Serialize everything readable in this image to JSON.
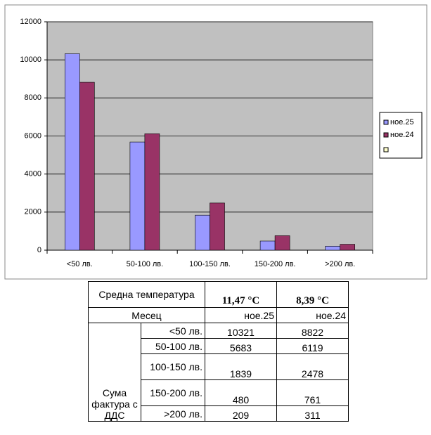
{
  "chart_data": {
    "type": "bar",
    "categories": [
      "<50 лв.",
      "50-100 лв.",
      "100-150 лв.",
      "150-200 лв.",
      ">200 лв."
    ],
    "series": [
      {
        "name": "ное.25",
        "color": "#9999ff",
        "values": [
          10321,
          5683,
          1839,
          480,
          209
        ]
      },
      {
        "name": "ное.24",
        "color": "#993366",
        "values": [
          8822,
          6119,
          2478,
          761,
          311
        ]
      }
    ],
    "ylim": [
      0,
      12000
    ],
    "yticks": [
      0,
      2000,
      4000,
      6000,
      8000,
      10000,
      12000
    ],
    "grid": true,
    "legend": "right"
  },
  "table": {
    "temperature_label": "Средна температура",
    "temperatures": [
      "11,47 °C",
      "8,39 °C"
    ],
    "month_label": "Месец",
    "group_label": "Сума фактура с ДДС"
  }
}
